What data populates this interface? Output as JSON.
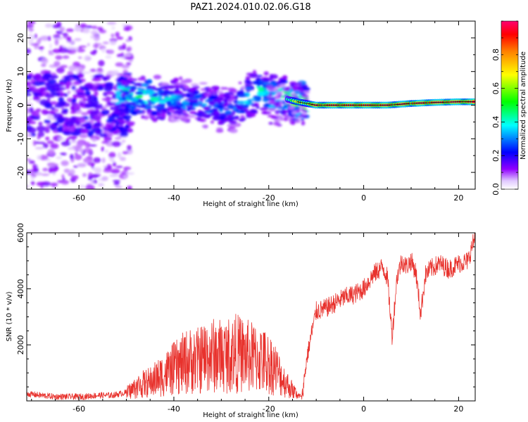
{
  "title": "PAZ1.2024.010.02.06.G18",
  "chart_data": [
    {
      "type": "heatmap",
      "xlabel": "Height of straight line (km)",
      "ylabel": "Frequency (Hz)",
      "xlim": [
        -71,
        23.5
      ],
      "ylim": [
        -25,
        25
      ],
      "xticks": [
        -60,
        -40,
        -20,
        0,
        20
      ],
      "yticks": [
        -20,
        -10,
        0,
        10,
        20
      ],
      "colorbar": {
        "label": "Normalized spectral amplitude",
        "range": [
          0,
          1
        ],
        "ticks": [
          0.0,
          0.2,
          0.4,
          0.6,
          0.8
        ],
        "colors": [
          "#ffffff",
          "#c8a8ff",
          "#8000ff",
          "#0000ff",
          "#00ffff",
          "#00ff00",
          "#ffff00",
          "#ff8000",
          "#ff0000",
          "#ff0080"
        ]
      },
      "ridge": [
        {
          "x": -52,
          "y": 3.5,
          "amp": 0.45
        },
        {
          "x": -46,
          "y": 2.5,
          "amp": 0.45
        },
        {
          "x": -40,
          "y": 1.5,
          "amp": 0.35
        },
        {
          "x": -34,
          "y": 0.5,
          "amp": 0.3
        },
        {
          "x": -28,
          "y": -1.5,
          "amp": 0.3
        },
        {
          "x": -22,
          "y": 4.5,
          "amp": 0.4
        },
        {
          "x": -18,
          "y": 2.5,
          "amp": 0.5
        },
        {
          "x": -14,
          "y": 1.0,
          "amp": 0.6
        },
        {
          "x": -10,
          "y": 0.0,
          "amp": 0.85
        },
        {
          "x": -5,
          "y": 0.0,
          "amp": 0.95
        },
        {
          "x": 0,
          "y": 0.0,
          "amp": 0.95
        },
        {
          "x": 5,
          "y": 0.0,
          "amp": 0.9
        },
        {
          "x": 10,
          "y": 0.5,
          "amp": 0.9
        },
        {
          "x": 15,
          "y": 0.8,
          "amp": 0.95
        },
        {
          "x": 20,
          "y": 1.0,
          "amp": 0.95
        },
        {
          "x": 23.5,
          "y": 1.0,
          "amp": 0.9
        }
      ]
    },
    {
      "type": "line",
      "xlabel": "Height of straight line (km)",
      "ylabel": "SNR (10 * v/v)",
      "xlim": [
        -71,
        23.5
      ],
      "ylim": [
        0,
        6000
      ],
      "xticks": [
        -60,
        -40,
        -20,
        0,
        20
      ],
      "yticks": [
        2000,
        4000,
        6000
      ],
      "color": "#e8322d",
      "series": [
        {
          "x": [
            -71,
            -68,
            -65,
            -62,
            -59,
            -56,
            -53,
            -50,
            -47,
            -45,
            -43,
            -41,
            -39,
            -37,
            -35,
            -33,
            -31,
            -29,
            -27,
            -25,
            -23,
            -21,
            -19,
            -17,
            -15,
            -13,
            -12,
            -11,
            -10,
            -8,
            -6,
            -4,
            -2,
            0,
            2,
            4,
            5,
            6,
            7,
            8,
            9,
            10,
            11,
            12,
            13,
            14,
            16,
            18,
            20,
            22,
            23.5
          ],
          "y": [
            250,
            200,
            150,
            150,
            150,
            200,
            200,
            300,
            600,
            700,
            900,
            1100,
            1300,
            1500,
            1500,
            1700,
            1700,
            1700,
            1800,
            1700,
            1600,
            1500,
            1300,
            800,
            400,
            100,
            1500,
            2400,
            3200,
            3300,
            3500,
            3700,
            3800,
            4000,
            4500,
            4800,
            4400,
            2300,
            4400,
            5000,
            4800,
            5000,
            4600,
            3100,
            4500,
            4700,
            4900,
            4700,
            4900,
            5000,
            5900
          ]
        }
      ]
    }
  ]
}
